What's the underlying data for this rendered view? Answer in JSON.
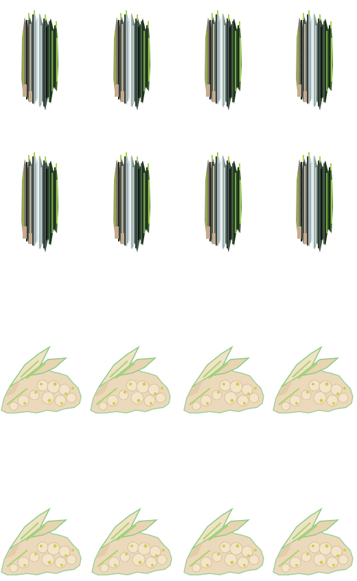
{
  "sprite_sheet": {
    "background": "#ffffff",
    "sprites": [
      {
        "name": "bamboo-stalks-sprite",
        "kind": "bamboo",
        "count": 8
      },
      {
        "name": "rubble-rock-sprite",
        "kind": "rubble",
        "count": 8
      }
    ],
    "palette": {
      "bamboo_dark": "#1c2620",
      "bamboo_mid": "#5d7366",
      "bamboo_light": "#dde8ea",
      "bamboo_green": "#8ab43a",
      "bamboo_tan": "#b9a087",
      "rubble_cream": "#ecd9bb",
      "rubble_shadow": "#cbb394",
      "rubble_yellow": "#d4cc4a",
      "rubble_green": "#7cc07a"
    }
  }
}
